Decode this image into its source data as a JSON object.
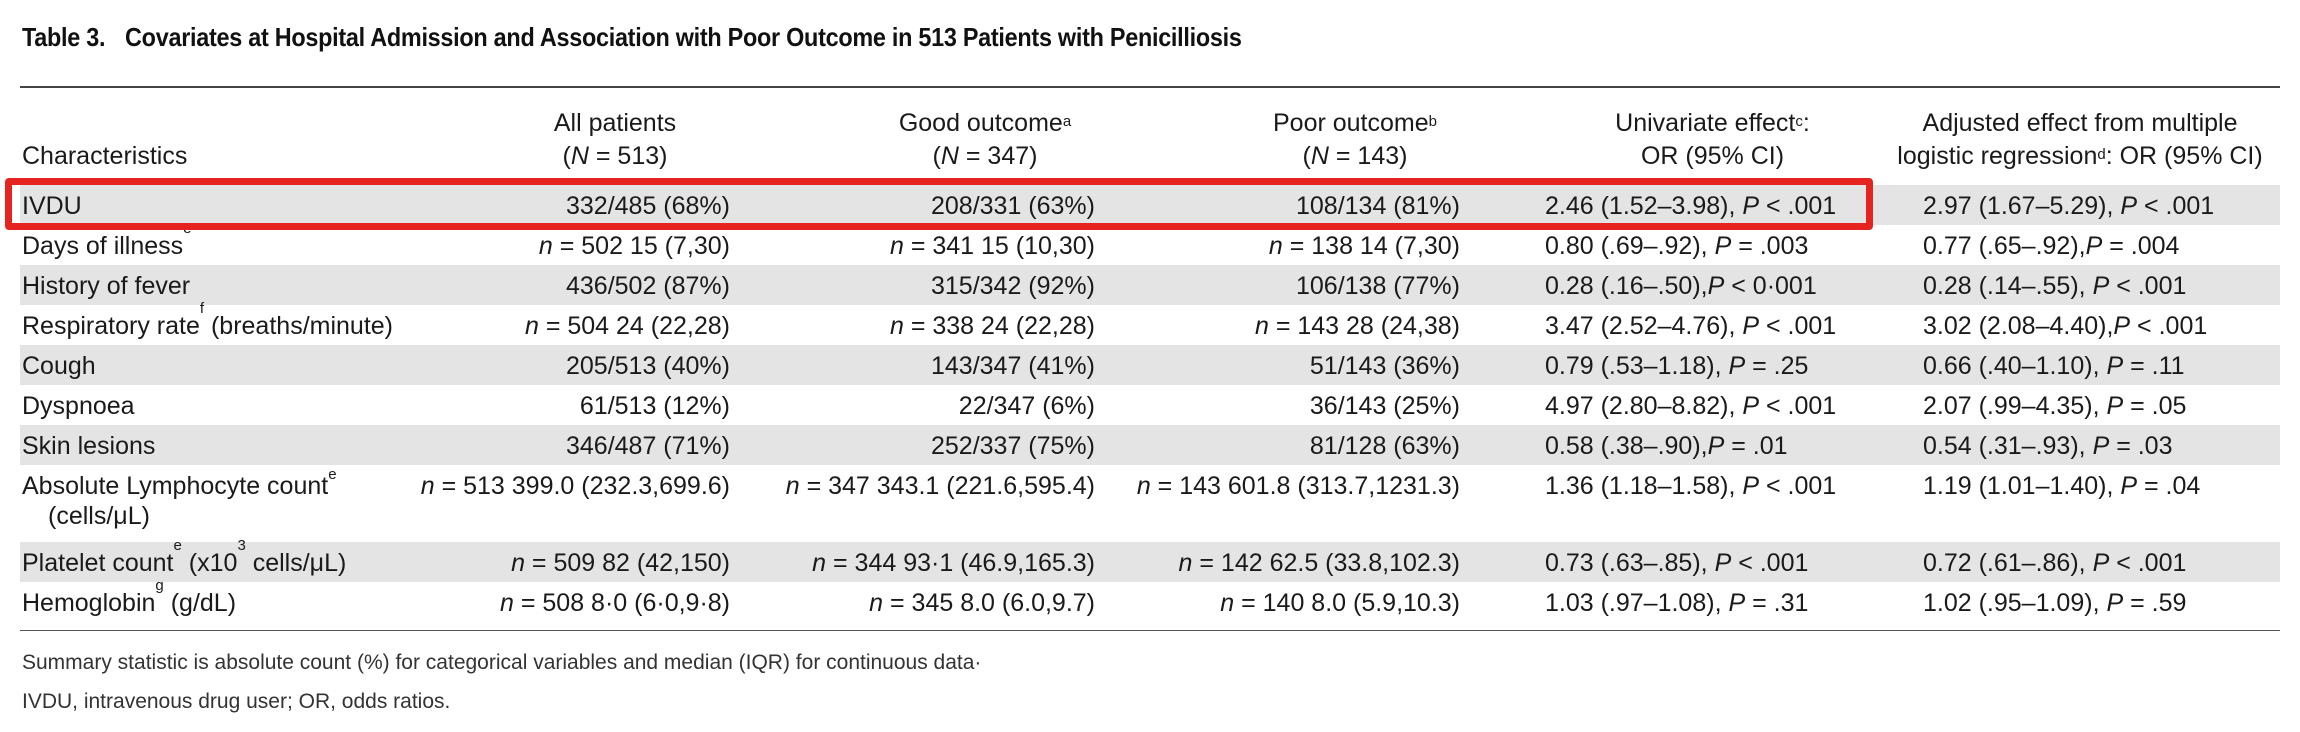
{
  "table": {
    "number": "Table 3.",
    "title": "Covariates at Hospital Admission and Association with Poor Outcome in 513 Patients with Penicilliosis",
    "headers": {
      "characteristics": "Characteristics",
      "all_line1": "All patients",
      "all_line2": "(N = 513)",
      "good_line1": "Good outcome",
      "good_sup": "a",
      "good_line2": "(N = 347)",
      "poor_line1": "Poor outcome",
      "poor_sup": "b",
      "poor_line2": "(N = 143)",
      "uni_line1": "Univariate effect",
      "uni_sup": "c",
      "uni_line1_end": ":",
      "uni_line2": "OR (95% CI)",
      "adj_line1": "Adjusted effect from multiple",
      "adj_line2": "logistic regression",
      "adj_sup": "d",
      "adj_line2_end": ": OR (95% CI)"
    },
    "rows": [
      {
        "label": "IVDU",
        "all": "332/485 (68%)",
        "good": "208/331 (63%)",
        "poor": "108/134 (81%)",
        "uni": "2.46 (1.52–3.98), P < .001",
        "adj": "2.97 (1.67–5.29), P < .001"
      },
      {
        "label": "Days of illness",
        "label_sup": "e",
        "all": "n = 502 15 (7,30)",
        "good": "n = 341 15 (10,30)",
        "poor": "n = 138 14 (7,30)",
        "uni": "0.80 (.69–.92), P = .003",
        "adj": "0.77 (.65–.92),P = .004"
      },
      {
        "label": "History of fever",
        "all": "436/502 (87%)",
        "good": "315/342 (92%)",
        "poor": "106/138 (77%)",
        "uni": "0.28 (.16–.50),P < 0·001",
        "adj": "0.28 (.14–.55), P < .001"
      },
      {
        "label": "Respiratory rate",
        "label_sup": "f",
        "label_end": " (breaths/minute)",
        "all": "n = 504 24 (22,28)",
        "good": "n = 338 24 (22,28)",
        "poor": "n = 143 28 (24,38)",
        "uni": "3.47 (2.52–4.76), P < .001",
        "adj": "3.02 (2.08–4.40),P < .001"
      },
      {
        "label": "Cough",
        "all": "205/513 (40%)",
        "good": "143/347 (41%)",
        "poor": "51/143 (36%)",
        "uni": "0.79 (.53–1.18), P = .25",
        "adj": "0.66 (.40–1.10), P = .11"
      },
      {
        "label": "Dyspnoea",
        "all": "61/513 (12%)",
        "good": "22/347 (6%)",
        "poor": "36/143 (25%)",
        "uni": "4.97 (2.80–8.82), P < .001",
        "adj": "2.07 (.99–4.35), P = .05"
      },
      {
        "label": "Skin lesions",
        "all": "346/487 (71%)",
        "good": "252/337 (75%)",
        "poor": "81/128 (63%)",
        "uni": "0.58 (.38–.90),P = .01",
        "adj": "0.54 (.31–.93), P = .03"
      },
      {
        "label": "Absolute Lymphocyte count",
        "label_sup": "e",
        "label_line2": "(cells/μL)",
        "all": "n = 513 399.0 (232.3,699.6)",
        "good": "n = 347 343.1 (221.6,595.4)",
        "poor": "n = 143 601.8 (313.7,1231.3)",
        "uni": "1.36 (1.18–1.58), P < .001",
        "adj": "1.19 (1.01–1.40), P = .04"
      },
      {
        "label": "Platelet count",
        "label_sup": "e",
        "label_mid": " (x10",
        "label_sup2": "3",
        "label_end": " cells/μL)",
        "all": "n = 509 82 (42,150)",
        "good": "n = 344 93·1 (46.9,165.3)",
        "poor": "n = 142 62.5 (33.8,102.3)",
        "uni": "0.73 (.63–.85), P < .001",
        "adj": "0.72 (.61–.86), P < .001"
      },
      {
        "label": "Hemoglobin",
        "label_sup": "g",
        "label_end": " (g/dL)",
        "all": "n = 508 8·0 (6·0,9·8)",
        "good": "n = 345 8.0 (6.0,9.7)",
        "poor": "n = 140 8.0 (5.9,10.3)",
        "uni": "1.03 (.97–1.08), P = .31",
        "adj": "1.02 (.95–1.09), P = .59"
      }
    ],
    "notes": [
      "Summary statistic is absolute count (%) for categorical variables and median (IQR) for continuous data·",
      "IVDU, intravenous drug user; OR, odds ratios."
    ],
    "highlight_color": "#e5231f",
    "shade_color": "#e4e4e4"
  }
}
